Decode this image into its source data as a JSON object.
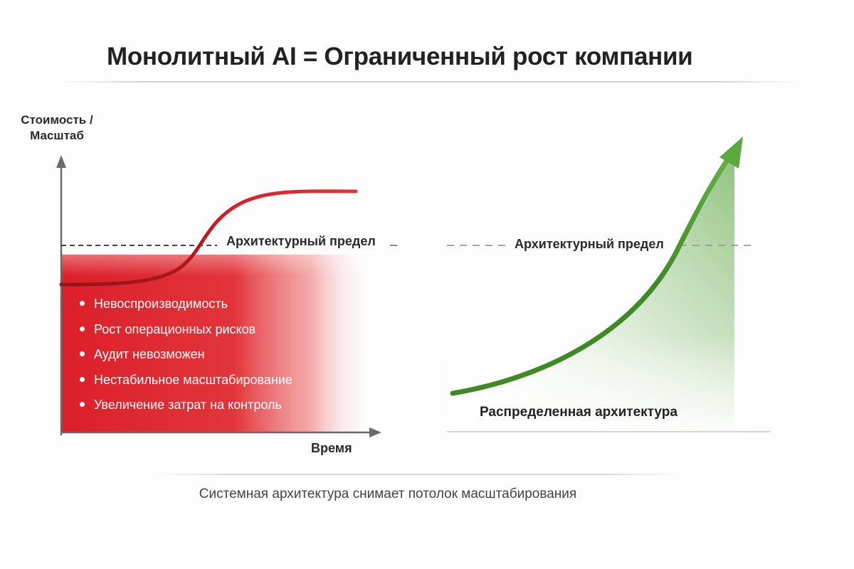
{
  "title": "Монолитный AI = Ограниченный рост компании",
  "left_panel": {
    "y_axis_label_line1": "Стоимость /",
    "y_axis_label_line2": "Масштаб",
    "x_axis_label": "Время",
    "limit_label": "Архитектурный предел",
    "risks": [
      "Невоспроизводимость",
      "Рост операционных рисков",
      "Аудит невозможен",
      "Нестабильное масштабирование",
      "Увеличение затрат на контроль"
    ],
    "curve_color": "#d01e26",
    "fill_color": "#e02a2f"
  },
  "right_panel": {
    "limit_label": "Архитектурный предел",
    "curve_label": "Распределенная архитектура",
    "curve_color": "#4e9a2e"
  },
  "caption": "Системная архитектура снимает потолок масштабирования"
}
